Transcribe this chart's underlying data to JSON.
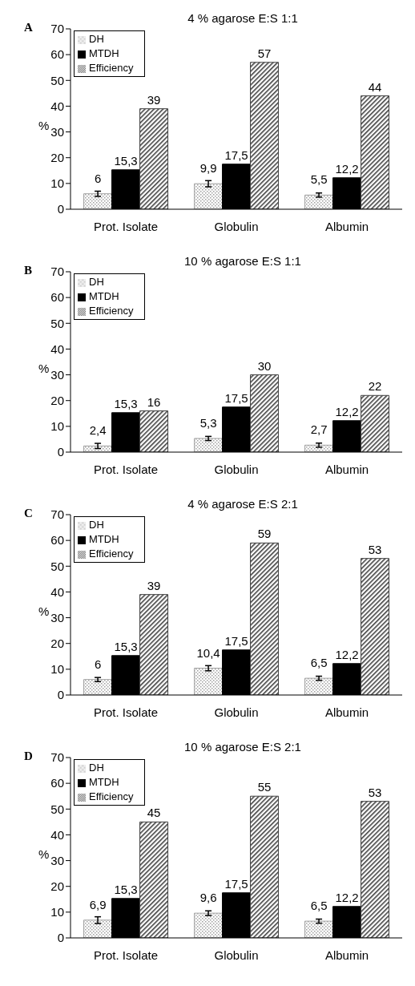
{
  "chart_data": [
    {
      "type": "bar",
      "title": "4 % agarose E:S  1:1",
      "ylabel": "%",
      "annotations": [
        "A"
      ],
      "categories": [
        "Prot. Isolate",
        "Globulin",
        "Albumin"
      ],
      "ylim": [
        0,
        70
      ],
      "yticks": [
        0,
        10,
        20,
        30,
        40,
        50,
        60,
        70
      ],
      "legend": "top left",
      "grid": false,
      "series": [
        {
          "name": "DH",
          "color": "#a0a0a0",
          "values": [
            6,
            9.9,
            5.5
          ],
          "errors": [
            1,
            1.2,
            0.8
          ],
          "value_labels": [
            "6",
            "9,9",
            "5,5"
          ]
        },
        {
          "name": "MTDH",
          "color": "#000000",
          "values": [
            15.3,
            17.5,
            12.2
          ],
          "value_labels": [
            "15,3",
            "17,5",
            "12,2"
          ]
        },
        {
          "name": "Efficiency",
          "color": "#404040",
          "values": [
            39,
            57,
            44
          ],
          "value_labels": [
            "39",
            "57",
            "44"
          ]
        }
      ]
    },
    {
      "type": "bar",
      "title": "10 % agarose E:S  1:1",
      "ylabel": "%",
      "annotations": [
        "B"
      ],
      "categories": [
        "Prot. Isolate",
        "Globulin",
        "Albumin"
      ],
      "ylim": [
        0,
        70
      ],
      "yticks": [
        0,
        10,
        20,
        30,
        40,
        50,
        60,
        70
      ],
      "legend": "top left",
      "grid": false,
      "series": [
        {
          "name": "DH",
          "color": "#a0a0a0",
          "values": [
            2.4,
            5.3,
            2.7
          ],
          "errors": [
            1,
            0.8,
            0.8
          ],
          "value_labels": [
            "2,4",
            "5,3",
            "2,7"
          ]
        },
        {
          "name": "MTDH",
          "color": "#000000",
          "values": [
            15.3,
            17.5,
            12.2
          ],
          "value_labels": [
            "15,3",
            "17,5",
            "12,2"
          ]
        },
        {
          "name": "Efficiency",
          "color": "#404040",
          "values": [
            16,
            30,
            22
          ],
          "value_labels": [
            "16",
            "30",
            "22"
          ]
        }
      ]
    },
    {
      "type": "bar",
      "title": "4 % agarose E:S  2:1",
      "ylabel": "%",
      "annotations": [
        "C"
      ],
      "categories": [
        "Prot. Isolate",
        "Globulin",
        "Albumin"
      ],
      "ylim": [
        0,
        70
      ],
      "yticks": [
        0,
        10,
        20,
        30,
        40,
        50,
        60,
        70
      ],
      "legend": "top left",
      "grid": false,
      "series": [
        {
          "name": "DH",
          "color": "#a0a0a0",
          "values": [
            6,
            10.4,
            6.5
          ],
          "errors": [
            0.8,
            1,
            0.8
          ],
          "value_labels": [
            "6",
            "10,4",
            "6,5"
          ]
        },
        {
          "name": "MTDH",
          "color": "#000000",
          "values": [
            15.3,
            17.5,
            12.2
          ],
          "value_labels": [
            "15,3",
            "17,5",
            "12,2"
          ]
        },
        {
          "name": "Efficiency",
          "color": "#404040",
          "values": [
            39,
            59,
            53
          ],
          "value_labels": [
            "39",
            "59",
            "53"
          ]
        }
      ]
    },
    {
      "type": "bar",
      "title": "10 % agarose E:S  2:1",
      "ylabel": "%",
      "annotations": [
        "D"
      ],
      "categories": [
        "Prot. Isolate",
        "Globulin",
        "Albumin"
      ],
      "ylim": [
        0,
        70
      ],
      "yticks": [
        0,
        10,
        20,
        30,
        40,
        50,
        60,
        70
      ],
      "legend": "top left",
      "grid": false,
      "series": [
        {
          "name": "DH",
          "color": "#a0a0a0",
          "values": [
            6.9,
            9.6,
            6.5
          ],
          "errors": [
            1.3,
            0.9,
            0.8
          ],
          "value_labels": [
            "6,9",
            "9,6",
            "6,5"
          ]
        },
        {
          "name": "MTDH",
          "color": "#000000",
          "values": [
            15.3,
            17.5,
            12.2
          ],
          "value_labels": [
            "15,3",
            "17,5",
            "12,2"
          ]
        },
        {
          "name": "Efficiency",
          "color": "#404040",
          "values": [
            45,
            55,
            53
          ],
          "value_labels": [
            "45",
            "55",
            "53"
          ]
        }
      ]
    }
  ]
}
